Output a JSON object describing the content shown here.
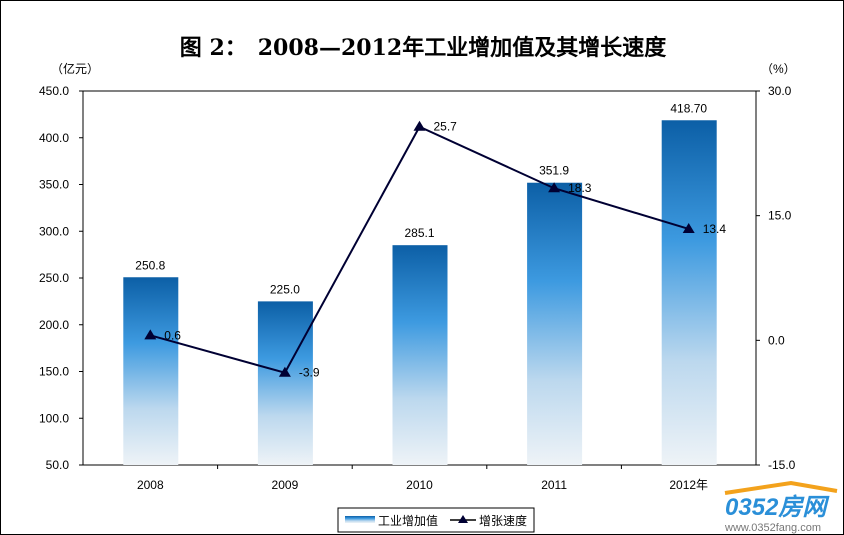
{
  "chart_data": {
    "type": "bar+line",
    "title": "图 2：　2008—2012年工业增加值及其增长速度",
    "ylabel_left": "（亿元）",
    "ylabel_right": "（%）",
    "categories": [
      "2008",
      "2009",
      "2010",
      "2011",
      "2012年"
    ],
    "left_axis": {
      "range": [
        50,
        450
      ],
      "ticks": [
        "50.0",
        "100.0",
        "150.0",
        "200.0",
        "250.0",
        "300.0",
        "350.0",
        "400.0",
        "450.0"
      ]
    },
    "right_axis": {
      "range": [
        -15,
        30
      ],
      "ticks": [
        "-15.0",
        "0.0",
        "15.0",
        "30.0"
      ]
    },
    "series": [
      {
        "name": "工业增加值",
        "type": "bar",
        "values": [
          250.8,
          225.0,
          285.1,
          351.9,
          418.7
        ],
        "labels": [
          "250.8",
          "225.0",
          "285.1",
          "351.9",
          "418.70"
        ],
        "color": "#1a6fb5"
      },
      {
        "name": "增张速度",
        "type": "line",
        "values": [
          0.6,
          -3.9,
          25.7,
          18.3,
          13.4
        ],
        "labels": [
          "0.6",
          "-3.9",
          "25.7",
          "18.3",
          "13.4"
        ],
        "color": "#000033",
        "marker": "triangle"
      }
    ],
    "legend": "bottom-left",
    "grid": false
  },
  "watermark": {
    "logo": "0352房网",
    "url": "www.0352fang.com"
  }
}
